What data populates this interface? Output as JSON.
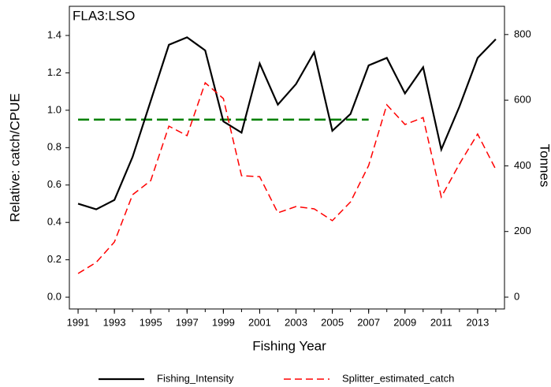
{
  "chart_data": {
    "type": "line",
    "title": "FLA3:LSO",
    "x_label": "Fishing Year",
    "y_label": "Relative: catch/CPUE",
    "y2_label": "Tonnes",
    "x": [
      1991,
      1992,
      1993,
      1994,
      1995,
      1996,
      1997,
      1998,
      1999,
      2000,
      2001,
      2002,
      2003,
      2004,
      2005,
      2006,
      2007,
      2008,
      2009,
      2010,
      2011,
      2012,
      2013,
      2014
    ],
    "series": [
      {
        "name": "Fishing_Intensity",
        "color": "#000000",
        "dash": "solid",
        "values": [
          0.5,
          0.47,
          0.52,
          0.75,
          1.05,
          1.35,
          1.39,
          1.32,
          0.94,
          0.88,
          1.25,
          1.03,
          1.14,
          1.31,
          0.89,
          0.98,
          1.24,
          1.28,
          1.09,
          1.23,
          0.79,
          1.02,
          1.28,
          1.38
        ]
      },
      {
        "name": "Splitter_estimated_catch",
        "color": "#ff0000",
        "dash": "dashed",
        "axis": "y2",
        "values": [
          72,
          106,
          168,
          312,
          355,
          521,
          492,
          653,
          605,
          370,
          367,
          257,
          276,
          269,
          233,
          290,
          401,
          586,
          526,
          547,
          305,
          406,
          497,
          389
        ]
      }
    ],
    "reference_line": {
      "value": 0.95,
      "x": [
        1991,
        2007
      ],
      "color": "#008000"
    },
    "xlim": [
      1990.52,
      2014.48
    ],
    "xticks": [
      1991,
      1993,
      1995,
      1997,
      1999,
      2001,
      2003,
      2005,
      2007,
      2009,
      2011,
      2013
    ],
    "ylim": [
      -0.063,
      1.556
    ],
    "yticks": [
      {
        "value": 0,
        "label": "0.0"
      },
      0.2,
      0.4,
      0.6,
      0.8,
      {
        "value": 1,
        "label": "1.0"
      },
      1.2,
      1.4
    ],
    "y2lim": [
      -36,
      886
    ],
    "y2ticks": [
      0,
      200,
      400,
      600,
      800
    ]
  }
}
